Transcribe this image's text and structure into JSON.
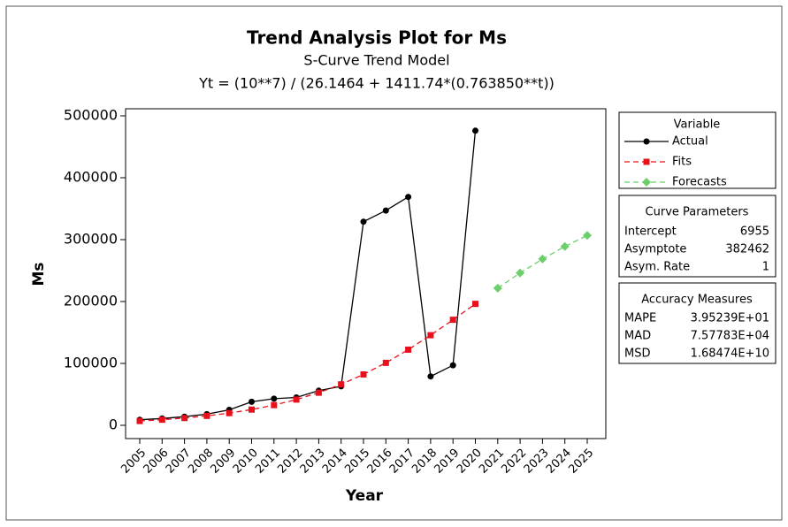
{
  "chart_data": {
    "type": "line",
    "title": "Trend Analysis Plot for Ms",
    "subtitle": "S-Curve Trend Model",
    "equation": "Yt = (10**7) / (26.1464 + 1411.74*(0.763850**t))",
    "x_label": "Year",
    "y_label": "Ms",
    "categories": [
      "2005",
      "2006",
      "2007",
      "2008",
      "2009",
      "2010",
      "2011",
      "2012",
      "2013",
      "2014",
      "2015",
      "2016",
      "2017",
      "2018",
      "2019",
      "2020",
      "2021",
      "2022",
      "2023",
      "2024",
      "2025"
    ],
    "series": [
      {
        "name": "Actual",
        "color": "#000000",
        "marker": "circle",
        "dashed": false,
        "values": [
          9000,
          11000,
          14000,
          18000,
          25000,
          38000,
          43000,
          45000,
          56000,
          63000,
          329000,
          347000,
          369000,
          79000,
          97000,
          476000,
          null,
          null,
          null,
          null,
          null
        ]
      },
      {
        "name": "Fits",
        "color": "#e8101a",
        "marker": "square",
        "dashed": true,
        "values": [
          6955,
          9054,
          11766,
          15260,
          19732,
          25426,
          32616,
          41615,
          52687,
          66181,
          82237,
          100908,
          122249,
          145560,
          170503,
          196195,
          null,
          null,
          null,
          null,
          null
        ]
      },
      {
        "name": "Forecasts",
        "color": "#6ccf6c",
        "marker": "diamond",
        "dashed": true,
        "values": [
          null,
          null,
          null,
          null,
          null,
          null,
          null,
          null,
          null,
          null,
          null,
          null,
          null,
          null,
          null,
          null,
          221680,
          246124,
          268673,
          289017,
          306748
        ]
      }
    ],
    "ylim": [
      0,
      500000
    ],
    "yticks": [
      0,
      100000,
      200000,
      300000,
      400000,
      500000
    ],
    "legend_title": "Variable",
    "curve_parameters": {
      "title": "Curve Parameters",
      "rows": [
        [
          "Intercept",
          "6955"
        ],
        [
          "Asymptote",
          "382462"
        ],
        [
          "Asym. Rate",
          "1"
        ]
      ]
    },
    "accuracy_measures": {
      "title": "Accuracy Measures",
      "rows": [
        [
          "MAPE",
          "3.95239E+01"
        ],
        [
          "MAD",
          "7.57783E+04"
        ],
        [
          "MSD",
          "1.68474E+10"
        ]
      ]
    }
  }
}
